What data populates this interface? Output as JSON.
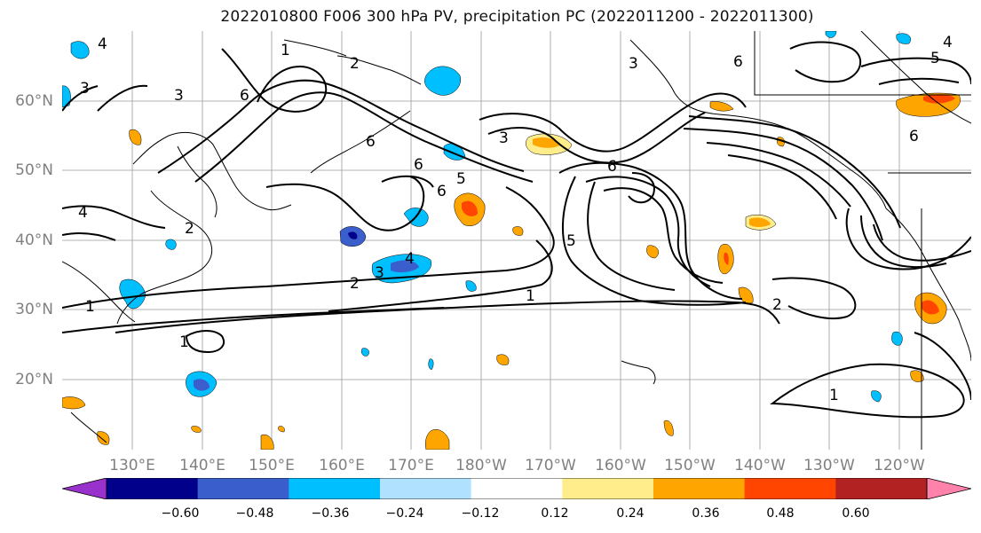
{
  "title": "2022010800 F006 300 hPa PV, precipitation PC (2022011200 - 2022011300)",
  "map": {
    "lat_labels": [
      "60°N",
      "50°N",
      "40°N",
      "30°N",
      "20°N"
    ],
    "lon_labels": [
      "130°E",
      "140°E",
      "150°E",
      "160°E",
      "170°E",
      "180°W",
      "170°W",
      "160°W",
      "150°W",
      "140°W",
      "130°W",
      "120°W"
    ],
    "pv_contour_labels": [
      "1",
      "2",
      "3",
      "4",
      "5",
      "6"
    ],
    "colors": {
      "contour": "#000000",
      "grid": "#9a9a9a",
      "coastline": "#000000"
    }
  },
  "colorbar": {
    "ticks": [
      "−0.60",
      "−0.48",
      "−0.36",
      "−0.24",
      "−0.12",
      "0.12",
      "0.24",
      "0.36",
      "0.48",
      "0.60"
    ],
    "colors": [
      "#9932cc",
      "#00008b",
      "#3a5fcd",
      "#00bfff",
      "#b0e2ff",
      "#ffffff",
      "#ffec8b",
      "#ffa500",
      "#ff4500",
      "#b22222",
      "#ff82ab"
    ]
  }
}
